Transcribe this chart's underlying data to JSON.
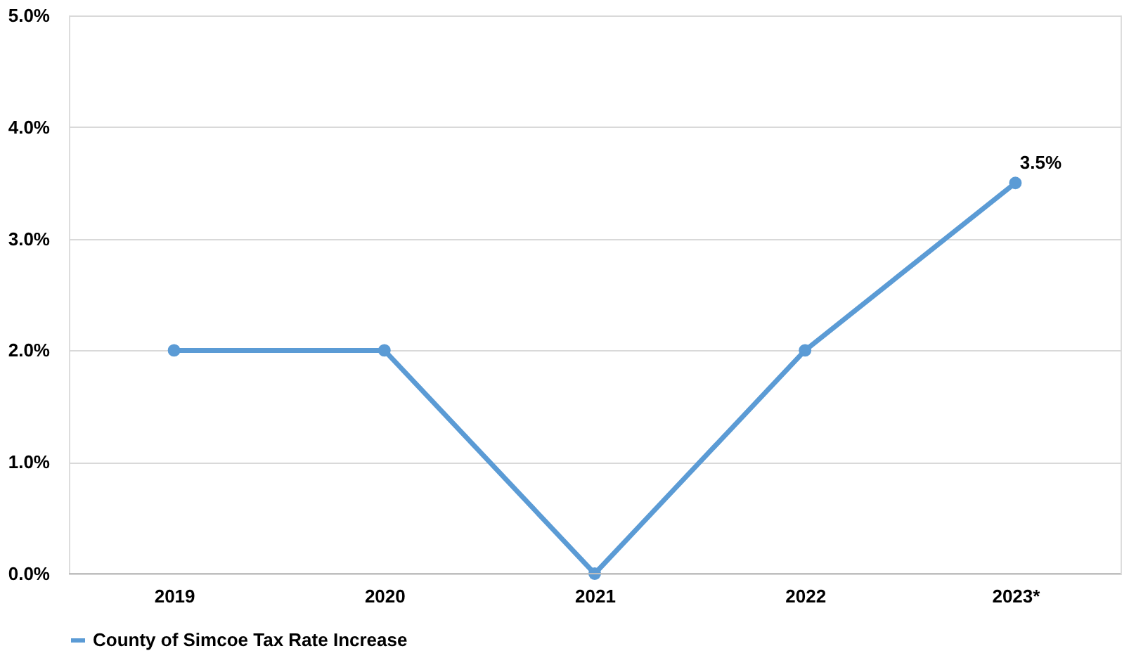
{
  "chart_data": {
    "type": "line",
    "categories": [
      "2019",
      "2020",
      "2021",
      "2022",
      "2023*"
    ],
    "series": [
      {
        "name": "County of Simcoe Tax Rate Increase",
        "color": "#5b9bd5",
        "values": [
          2,
          2,
          0,
          2,
          3.5
        ],
        "value_labels": [
          null,
          null,
          null,
          null,
          "3.5%"
        ]
      }
    ],
    "ylim": [
      0,
      5
    ],
    "yticks": [
      {
        "value": 0,
        "label": "0.0%"
      },
      {
        "value": 1,
        "label": "1.0%"
      },
      {
        "value": 2,
        "label": "2.0%"
      },
      {
        "value": 3,
        "label": "3.0%"
      },
      {
        "value": 4,
        "label": "4.0%"
      },
      {
        "value": 5,
        "label": "5.0%"
      }
    ],
    "grid": "y",
    "legend": "bottom",
    "marker": "circle",
    "line_style": "solid"
  }
}
